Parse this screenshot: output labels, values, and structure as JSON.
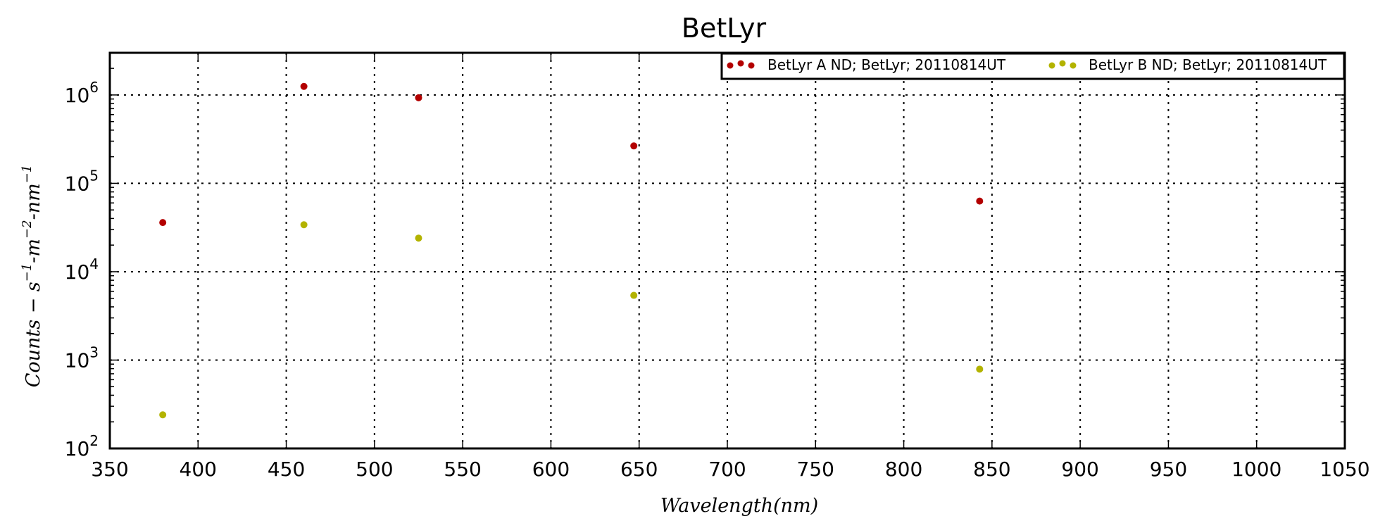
{
  "chart_data": {
    "type": "scatter",
    "title": "BetLyr",
    "xlabel": "Wavelength(nm)",
    "ylabel": "Counts - s^-1-m^-2-nm^-1",
    "xlim": [
      350,
      1050
    ],
    "ylim": [
      100,
      3000000
    ],
    "yscale": "log",
    "x_ticks": [
      350,
      400,
      450,
      500,
      550,
      600,
      650,
      700,
      750,
      800,
      850,
      900,
      950,
      1000,
      1050
    ],
    "y_ticks": [
      {
        "value": 100,
        "base": "10",
        "exp": "2"
      },
      {
        "value": 1000,
        "base": "10",
        "exp": "3"
      },
      {
        "value": 10000,
        "base": "10",
        "exp": "4"
      },
      {
        "value": 100000,
        "base": "10",
        "exp": "5"
      },
      {
        "value": 1000000,
        "base": "10",
        "exp": "6"
      }
    ],
    "grid": true,
    "legend_position": "top-right",
    "series": [
      {
        "name": "BetLyr A ND; BetLyr; 20110814UT",
        "color": "#b30000",
        "x": [
          380,
          460,
          525,
          647,
          843
        ],
        "y": [
          36000,
          1250000,
          930000,
          265000,
          63000
        ]
      },
      {
        "name": "BetLyr B ND; BetLyr; 20110814UT",
        "color": "#b3b300",
        "x": [
          380,
          460,
          525,
          647,
          843
        ],
        "y": [
          240,
          34000,
          24000,
          5400,
          790
        ]
      }
    ]
  }
}
